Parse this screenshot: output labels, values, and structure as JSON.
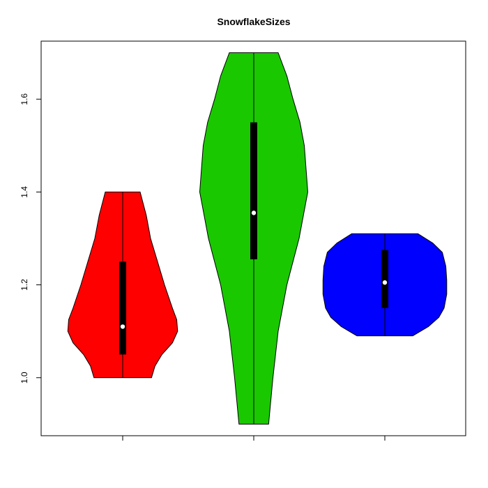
{
  "chart_data": {
    "type": "violin",
    "title": "SnowflakeSizes",
    "xlabel": "",
    "ylabel": "",
    "ylim": [
      0.875,
      1.725
    ],
    "yticks": [
      1.0,
      1.2,
      1.4,
      1.6
    ],
    "ytick_labels": [
      "1.0",
      "1.2",
      "1.4",
      "1.6"
    ],
    "xticks": [
      1,
      2,
      3
    ],
    "grid": false,
    "legend": "none",
    "series": [
      {
        "color": "#ff0000",
        "min": 1.0,
        "max": 1.4,
        "q1": 1.05,
        "median": 1.11,
        "q3": 1.25,
        "density": [
          [
            1.0,
            0.33
          ],
          [
            1.025,
            0.37
          ],
          [
            1.05,
            0.45
          ],
          [
            1.075,
            0.57
          ],
          [
            1.1,
            0.63
          ],
          [
            1.125,
            0.62
          ],
          [
            1.15,
            0.57
          ],
          [
            1.2,
            0.48
          ],
          [
            1.25,
            0.4
          ],
          [
            1.3,
            0.32
          ],
          [
            1.35,
            0.27
          ],
          [
            1.4,
            0.2
          ]
        ]
      },
      {
        "color": "#1ac800",
        "min": 0.9,
        "max": 1.7,
        "q1": 1.255,
        "median": 1.355,
        "q3": 1.55,
        "density": [
          [
            0.9,
            0.17
          ],
          [
            1.0,
            0.22
          ],
          [
            1.1,
            0.28
          ],
          [
            1.2,
            0.38
          ],
          [
            1.3,
            0.52
          ],
          [
            1.4,
            0.62
          ],
          [
            1.5,
            0.58
          ],
          [
            1.55,
            0.53
          ],
          [
            1.6,
            0.45
          ],
          [
            1.65,
            0.38
          ],
          [
            1.7,
            0.28
          ]
        ]
      },
      {
        "color": "#0000ff",
        "min": 1.09,
        "max": 1.31,
        "q1": 1.15,
        "median": 1.205,
        "q3": 1.275,
        "density": [
          [
            1.09,
            0.32
          ],
          [
            1.11,
            0.5
          ],
          [
            1.13,
            0.62
          ],
          [
            1.15,
            0.68
          ],
          [
            1.18,
            0.71
          ],
          [
            1.21,
            0.71
          ],
          [
            1.24,
            0.7
          ],
          [
            1.27,
            0.66
          ],
          [
            1.29,
            0.55
          ],
          [
            1.31,
            0.38
          ]
        ]
      }
    ]
  }
}
